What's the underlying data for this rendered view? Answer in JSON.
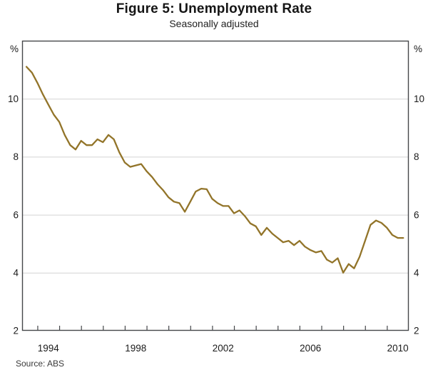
{
  "figure": {
    "title": "Figure 5: Unemployment Rate",
    "subtitle": "Seasonally adjusted",
    "source": "Source: ABS"
  },
  "chart_data": {
    "type": "line",
    "title": "Figure 5: Unemployment Rate",
    "subtitle": "Seasonally adjusted",
    "unit": "%",
    "xlabel": "",
    "ylabel": "%",
    "xlim": [
      1993.3,
      2011.0
    ],
    "ylim": [
      2,
      12
    ],
    "y_ticks": [
      2,
      4,
      6,
      8,
      10
    ],
    "x_tick_years": [
      1994,
      1995,
      1996,
      1997,
      1998,
      1999,
      2000,
      2001,
      2002,
      2003,
      2004,
      2005,
      2006,
      2007,
      2008,
      2009,
      2010
    ],
    "x_label_years": [
      1994,
      1998,
      2002,
      2006,
      2010
    ],
    "grid": true,
    "legend_position": "none",
    "line_color": "#927429",
    "grid_color": "#d4d4d4",
    "frame_color": "#45474a",
    "source": "Source: ABS",
    "series": [
      {
        "name": "Unemployment rate, seasonally adjusted (%)",
        "x": [
          1993.5,
          1993.75,
          1994.0,
          1994.25,
          1994.5,
          1994.75,
          1995.0,
          1995.25,
          1995.5,
          1995.75,
          1996.0,
          1996.25,
          1996.5,
          1996.75,
          1997.0,
          1997.25,
          1997.5,
          1997.75,
          1998.0,
          1998.25,
          1998.5,
          1998.75,
          1999.0,
          1999.25,
          1999.5,
          1999.75,
          2000.0,
          2000.25,
          2000.5,
          2000.75,
          2001.0,
          2001.25,
          2001.5,
          2001.75,
          2002.0,
          2002.25,
          2002.5,
          2002.75,
          2003.0,
          2003.25,
          2003.5,
          2003.75,
          2004.0,
          2004.25,
          2004.5,
          2004.75,
          2005.0,
          2005.25,
          2005.5,
          2005.75,
          2006.0,
          2006.25,
          2006.5,
          2006.75,
          2007.0,
          2007.25,
          2007.5,
          2007.75,
          2008.0,
          2008.25,
          2008.5,
          2008.75,
          2009.0,
          2009.25,
          2009.5,
          2009.75,
          2010.0,
          2010.25,
          2010.5,
          2010.75
        ],
        "values": [
          11.1,
          10.9,
          10.55,
          10.15,
          9.8,
          9.45,
          9.2,
          8.75,
          8.4,
          8.25,
          8.55,
          8.4,
          8.4,
          8.6,
          8.5,
          8.75,
          8.6,
          8.15,
          7.8,
          7.65,
          7.7,
          7.75,
          7.5,
          7.3,
          7.05,
          6.85,
          6.6,
          6.45,
          6.4,
          6.1,
          6.45,
          6.8,
          6.9,
          6.88,
          6.55,
          6.4,
          6.3,
          6.3,
          6.05,
          6.15,
          5.95,
          5.7,
          5.6,
          5.3,
          5.55,
          5.35,
          5.2,
          5.05,
          5.1,
          4.95,
          5.1,
          4.9,
          4.78,
          4.7,
          4.75,
          4.45,
          4.35,
          4.5,
          4.0,
          4.3,
          4.15,
          4.55,
          5.1,
          5.65,
          5.8,
          5.72,
          5.55,
          5.3,
          5.2,
          5.2
        ]
      }
    ]
  }
}
